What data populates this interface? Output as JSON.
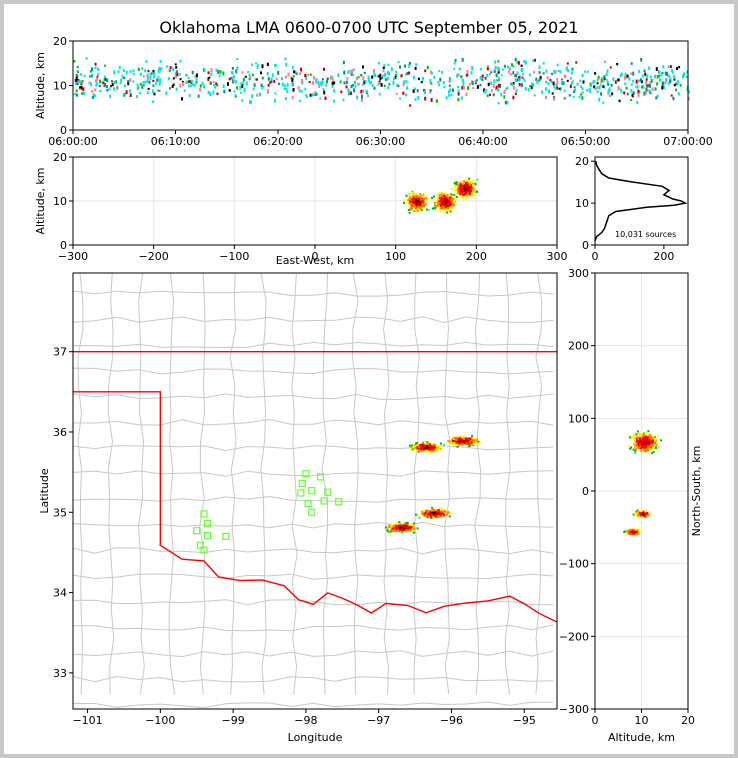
{
  "title": "Oklahoma LMA 0600-0700 UTC September 05, 2021",
  "colors": {
    "state_border": "#ff0000",
    "county_lines": "#c8c8c8",
    "stations": "#66ff33"
  },
  "chart_data": [
    {
      "id": "time-altitude",
      "type": "scatter",
      "ylabel": "Altitude, km",
      "xlabel": "",
      "ylim": [
        0,
        20
      ],
      "yticks": [
        "0",
        "10",
        "20"
      ],
      "xticks": [
        "06:00:00",
        "06:10:00",
        "06:20:00",
        "06:30:00",
        "06:40:00",
        "06:50:00",
        "07:00:00"
      ],
      "xlim_minutes": [
        0,
        60
      ],
      "altitude_band_km": [
        3,
        18
      ],
      "core_altitude_km": 10
    },
    {
      "id": "ew-altitude",
      "type": "scatter",
      "xlabel": "East-West, km",
      "ylabel": "Altitude, km",
      "xlim": [
        -300,
        300
      ],
      "ylim": [
        0,
        20
      ],
      "xticks": [
        "−300",
        "−200",
        "−100",
        "0",
        "100",
        "200",
        "300"
      ],
      "yticks": [
        "0",
        "10",
        "20"
      ],
      "clusters": [
        {
          "x": 125,
          "z": 10
        },
        {
          "x": 160,
          "z": 10
        },
        {
          "x": 185,
          "z": 13
        }
      ]
    },
    {
      "id": "altitude-histogram",
      "type": "line",
      "xlim": [
        0,
        270
      ],
      "ylim": [
        0,
        21
      ],
      "xticks": [
        "0",
        "200"
      ],
      "yticks": [
        "0",
        "10",
        "20"
      ],
      "annotation": "10,031 sources",
      "profile": [
        {
          "z": 1.0,
          "count": 0
        },
        {
          "z": 2.0,
          "count": 5
        },
        {
          "z": 3.0,
          "count": 20
        },
        {
          "z": 4.0,
          "count": 28
        },
        {
          "z": 5.0,
          "count": 32
        },
        {
          "z": 6.0,
          "count": 36
        },
        {
          "z": 7.0,
          "count": 40
        },
        {
          "z": 8.0,
          "count": 60
        },
        {
          "z": 9.0,
          "count": 150
        },
        {
          "z": 9.5,
          "count": 230
        },
        {
          "z": 10.0,
          "count": 262
        },
        {
          "z": 10.5,
          "count": 250
        },
        {
          "z": 11.0,
          "count": 225
        },
        {
          "z": 12.0,
          "count": 200
        },
        {
          "z": 13.0,
          "count": 215
        },
        {
          "z": 14.0,
          "count": 195
        },
        {
          "z": 15.0,
          "count": 110
        },
        {
          "z": 16.0,
          "count": 40
        },
        {
          "z": 17.0,
          "count": 20
        },
        {
          "z": 18.0,
          "count": 12
        },
        {
          "z": 19.0,
          "count": 5
        },
        {
          "z": 20.0,
          "count": 2
        }
      ]
    },
    {
      "id": "plan-view",
      "type": "scatter",
      "xlabel": "Longitude",
      "ylabel": "Latitude",
      "xlim": [
        -101.2,
        -94.55
      ],
      "ylim": [
        32.55,
        37.98
      ],
      "xticks": [
        "−101",
        "−100",
        "−99",
        "−98",
        "−97",
        "−96",
        "−95"
      ],
      "yticks": [
        "33",
        "34",
        "35",
        "36",
        "37"
      ],
      "source_clusters": [
        {
          "lon": -95.85,
          "lat": 35.9
        },
        {
          "lon": -96.35,
          "lat": 35.82
        },
        {
          "lon": -96.25,
          "lat": 35.0
        },
        {
          "lon": -96.7,
          "lat": 34.82
        }
      ],
      "stations": [
        {
          "lon": -99.4,
          "lat": 34.98
        },
        {
          "lon": -99.35,
          "lat": 34.86
        },
        {
          "lon": -99.5,
          "lat": 34.77
        },
        {
          "lon": -99.35,
          "lat": 34.71
        },
        {
          "lon": -99.45,
          "lat": 34.59
        },
        {
          "lon": -99.4,
          "lat": 34.53
        },
        {
          "lon": -99.1,
          "lat": 34.7
        },
        {
          "lon": -98.0,
          "lat": 35.48
        },
        {
          "lon": -97.8,
          "lat": 35.44
        },
        {
          "lon": -98.05,
          "lat": 35.36
        },
        {
          "lon": -98.07,
          "lat": 35.24
        },
        {
          "lon": -97.92,
          "lat": 35.27
        },
        {
          "lon": -97.7,
          "lat": 35.25
        },
        {
          "lon": -97.97,
          "lat": 35.11
        },
        {
          "lon": -97.75,
          "lat": 35.14
        },
        {
          "lon": -97.55,
          "lat": 35.13
        },
        {
          "lon": -97.92,
          "lat": 35.0
        }
      ]
    },
    {
      "id": "altitude-ns",
      "type": "scatter",
      "xlabel": "Altitude, km",
      "ylabel": "North-South, km",
      "xlim": [
        0,
        20
      ],
      "ylim": [
        -300,
        300
      ],
      "xticks": [
        "0",
        "10",
        "20"
      ],
      "yticks": [
        "−300",
        "−200",
        "−100",
        "0",
        "100",
        "200",
        "300"
      ],
      "clusters": [
        {
          "z": 10.5,
          "y": 68
        },
        {
          "z": 10,
          "y": -30
        },
        {
          "z": 8,
          "y": -55
        }
      ]
    }
  ]
}
